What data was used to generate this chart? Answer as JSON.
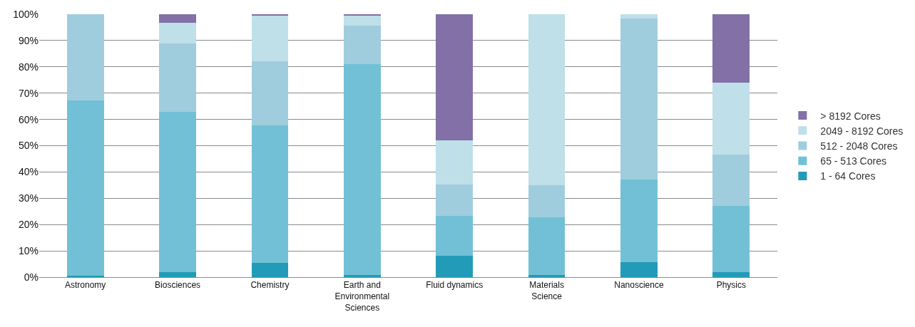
{
  "chart_data": {
    "type": "bar",
    "stacked": true,
    "categories": [
      "Astronomy",
      "Biosciences",
      "Chemistry",
      "Earth and Environmental Sciences",
      "Fluid dynamics",
      "Materials Science",
      "Nanoscience",
      "Physics"
    ],
    "series": [
      {
        "name": "1 - 64 Cores",
        "color": "#229bb8",
        "values": [
          0.5,
          2,
          5.3,
          0.8,
          8,
          0.7,
          5.7,
          1.8
        ]
      },
      {
        "name": "65 - 513 Cores",
        "color": "#72c0d6",
        "values": [
          66.7,
          60.8,
          52.4,
          80.3,
          15.2,
          22.2,
          31.3,
          25.3
        ]
      },
      {
        "name": "512 - 2048 Cores",
        "color": "#9fcddd",
        "values": [
          32.8,
          26,
          24.5,
          14.6,
          11.9,
          12,
          61.3,
          19.4
        ]
      },
      {
        "name": "2049 - 8192 Cores",
        "color": "#bfdfe9",
        "values": [
          0,
          8,
          17.3,
          4,
          16.8,
          65.1,
          1.7,
          27.6
        ]
      },
      {
        "name": "> 8192 Cores",
        "color": "#8270a6",
        "values": [
          0,
          3.2,
          0.5,
          0.3,
          48.1,
          0,
          0,
          25.9
        ]
      }
    ],
    "ylim": [
      0,
      100
    ],
    "yticks": [
      {
        "value": 0,
        "label": "0%"
      },
      {
        "value": 10,
        "label": "10%"
      },
      {
        "value": 20,
        "label": "20%"
      },
      {
        "value": 30,
        "label": "30%"
      },
      {
        "value": 40,
        "label": "40%"
      },
      {
        "value": 50,
        "label": "50%"
      },
      {
        "value": 60,
        "label": "60%"
      },
      {
        "value": 70,
        "label": "70%"
      },
      {
        "value": 80,
        "label": "80%"
      },
      {
        "value": 90,
        "label": "90%"
      },
      {
        "value": 100,
        "label": "100%"
      }
    ],
    "grid": "y",
    "legend": "right"
  }
}
